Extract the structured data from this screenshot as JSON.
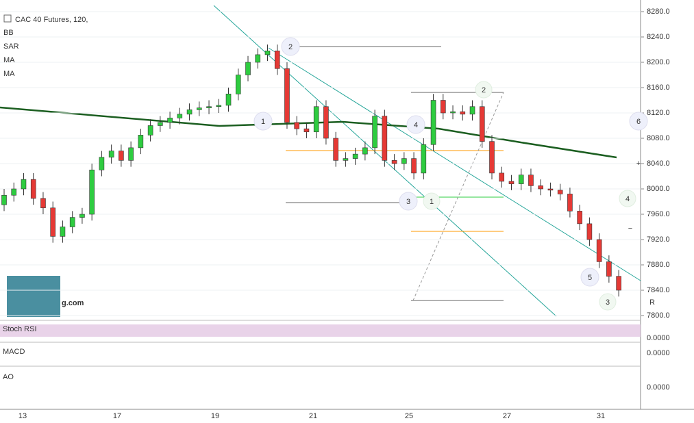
{
  "chart_data": {
    "type": "candlestick",
    "title": "CAC 40 Futures, 120,",
    "indicators": [
      "BB",
      "SAR",
      "MA",
      "MA"
    ],
    "panes": [
      {
        "label": "Stoch RSI",
        "tick": "0.0000"
      },
      {
        "label": "MACD",
        "tick": "0.0000"
      },
      {
        "label": "AO",
        "tick": "0.0000"
      }
    ],
    "watermark": "g.com",
    "x_labels": [
      "13",
      "17",
      "19",
      "21",
      "25",
      "27",
      "31"
    ],
    "ylim": [
      7800,
      8280
    ],
    "yticks": [
      {
        "value": 8280,
        "label": "8280.0"
      },
      {
        "value": 8240,
        "label": "8240.0"
      },
      {
        "value": 8200,
        "label": "8200.0"
      },
      {
        "value": 8160,
        "label": "8160.0"
      },
      {
        "value": 8120,
        "label": "8120.0"
      },
      {
        "value": 8080,
        "label": "8080.0"
      },
      {
        "value": 8040,
        "label": "8040.0"
      },
      {
        "value": 8000,
        "label": "8000.0"
      },
      {
        "value": 7960,
        "label": "7960.0"
      },
      {
        "value": 7920,
        "label": "7920.0"
      },
      {
        "value": 7880,
        "label": "7880.0"
      },
      {
        "value": 7840,
        "label": "7840.0"
      },
      {
        "value": 7800,
        "label": "7800.0"
      }
    ],
    "up_color": "#2ecc40",
    "down_color": "#e53935",
    "open": [
      7975,
      7990,
      8000,
      8015,
      7985,
      7970,
      7925,
      7940,
      7955,
      7960,
      8030,
      8050,
      8060,
      8045,
      8065,
      8085,
      8100,
      8105,
      8112,
      8118,
      8125,
      8128,
      8130,
      8132,
      8150,
      8180,
      8200,
      8212,
      8218,
      8190,
      8105,
      8095,
      8090,
      8130,
      8080,
      8045,
      8048,
      8055,
      8065,
      8115,
      8045,
      8040,
      8048,
      8025,
      8070,
      8140,
      8120,
      8122,
      8118,
      8130,
      8075,
      8025,
      8012,
      8008,
      8022,
      8005,
      8000,
      7998,
      7992,
      7965,
      7945,
      7920,
      7885,
      7862
    ],
    "high": [
      8000,
      8010,
      8025,
      8025,
      7995,
      7980,
      7950,
      7965,
      7970,
      8040,
      8060,
      8070,
      8070,
      8075,
      8095,
      8110,
      8115,
      8122,
      8128,
      8135,
      8138,
      8140,
      8142,
      8160,
      8190,
      8210,
      8222,
      8228,
      8228,
      8200,
      8115,
      8105,
      8140,
      8140,
      8090,
      8058,
      8065,
      8075,
      8125,
      8125,
      8055,
      8058,
      8058,
      8080,
      8150,
      8150,
      8132,
      8132,
      8140,
      8140,
      8085,
      8035,
      8022,
      8032,
      8032,
      8015,
      8010,
      8008,
      8002,
      7975,
      7955,
      7930,
      7895,
      7872
    ],
    "low": [
      7965,
      7980,
      7990,
      7975,
      7960,
      7915,
      7915,
      7930,
      7945,
      7950,
      8020,
      8040,
      8035,
      8035,
      8055,
      8075,
      8090,
      8095,
      8102,
      8108,
      8115,
      8118,
      8120,
      8122,
      8140,
      8170,
      8190,
      8202,
      8180,
      8095,
      8085,
      8080,
      8080,
      8070,
      8035,
      8035,
      8038,
      8045,
      8055,
      8035,
      8030,
      8030,
      8015,
      8015,
      8060,
      8110,
      8110,
      8108,
      8108,
      8065,
      8015,
      8002,
      7998,
      7998,
      7995,
      7990,
      7988,
      7982,
      7955,
      7935,
      7910,
      7875,
      7852,
      7830
    ],
    "close": [
      7990,
      8000,
      8015,
      7985,
      7970,
      7925,
      7940,
      7955,
      7960,
      8030,
      8050,
      8060,
      8045,
      8065,
      8085,
      8100,
      8105,
      8112,
      8118,
      8125,
      8128,
      8130,
      8132,
      8150,
      8180,
      8200,
      8212,
      8218,
      8190,
      8105,
      8095,
      8090,
      8130,
      8080,
      8045,
      8048,
      8055,
      8065,
      8115,
      8045,
      8040,
      8048,
      8025,
      8070,
      8140,
      8120,
      8122,
      8118,
      8130,
      8075,
      8025,
      8012,
      8008,
      8022,
      8005,
      8000,
      7998,
      7992,
      7965,
      7945,
      7920,
      7885,
      7862,
      7840
    ],
    "wave_labels": [
      "1",
      "2",
      "3",
      "4",
      "5",
      "6"
    ],
    "green_labels": [
      "1",
      "2",
      "3",
      "4",
      "R",
      "+",
      "−"
    ]
  }
}
